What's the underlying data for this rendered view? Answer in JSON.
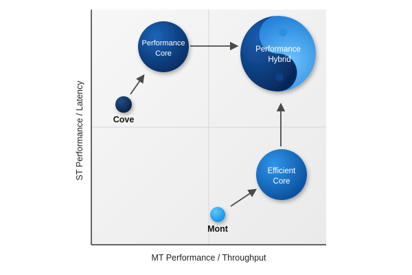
{
  "axes": {
    "x_label": "MT Performance / Throughput",
    "y_label": "ST Performance / Latency"
  },
  "nodes": {
    "cove": {
      "label": "Cove",
      "color": "#0f2f5a"
    },
    "mont": {
      "label": "Mont",
      "color": "#19a2f0"
    },
    "performance_core": {
      "line1": "Performance",
      "line2": "Core",
      "color": "#0a3f86"
    },
    "efficient_core": {
      "line1": "Efficient",
      "line2": "Core",
      "color": "#0f6fc4"
    },
    "performance_hybrid": {
      "line1": "Performance",
      "line2": "Hybrid",
      "dark": "#0a3f86",
      "light": "#2a9ae8"
    }
  },
  "colors": {
    "arrow": "#4a4a4a",
    "axis": "#333333",
    "panel": "#f2f2f2",
    "grid": "#dddddd"
  }
}
